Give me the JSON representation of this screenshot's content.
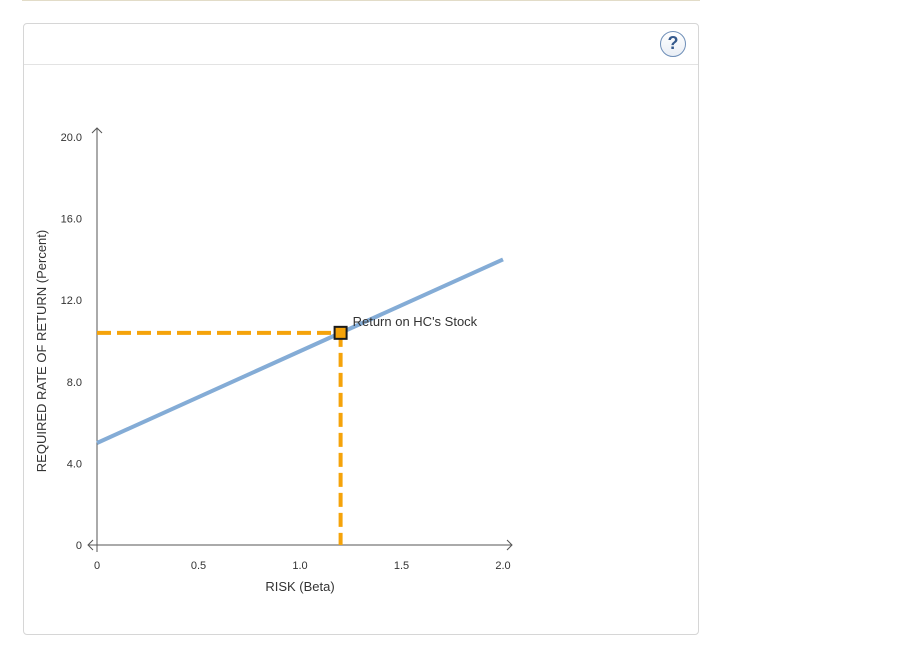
{
  "help": {
    "label": "?"
  },
  "chart_data": {
    "type": "line",
    "xlabel": "RISK (Beta)",
    "ylabel": "REQUIRED RATE OF RETURN (Percent)",
    "xlim": [
      0,
      2.0
    ],
    "ylim": [
      0,
      20.0
    ],
    "x_ticks": [
      {
        "value": 0,
        "label": "0"
      },
      {
        "value": 0.5,
        "label": "0.5"
      },
      {
        "value": 1.0,
        "label": "1.0"
      },
      {
        "value": 1.5,
        "label": "1.5"
      },
      {
        "value": 2.0,
        "label": "2.0"
      }
    ],
    "y_ticks": [
      {
        "value": 0,
        "label": "0"
      },
      {
        "value": 4.0,
        "label": "4.0"
      },
      {
        "value": 8.0,
        "label": "8.0"
      },
      {
        "value": 12.0,
        "label": "12.0"
      },
      {
        "value": 16.0,
        "label": "16.0"
      },
      {
        "value": 20.0,
        "label": "20.0"
      }
    ],
    "grid": false,
    "series": [
      {
        "x": [
          0,
          2.0
        ],
        "y": [
          5.0,
          14.0
        ],
        "color": "#84acd6"
      }
    ],
    "point": {
      "label": "Return on HC's Stock",
      "x": 1.2,
      "y": 10.4,
      "marker_color": "#f5a30a",
      "guide_color": "#f5a30a"
    }
  }
}
